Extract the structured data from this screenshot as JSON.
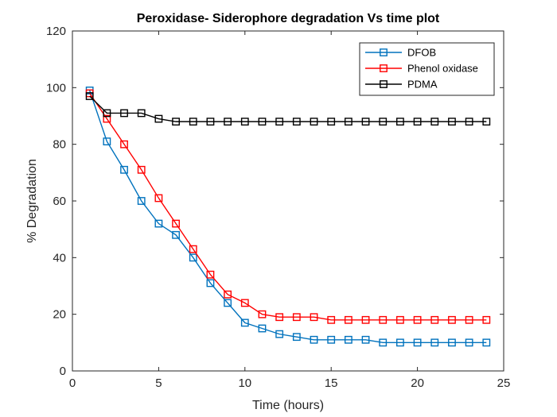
{
  "chart_data": {
    "type": "line",
    "title": "Peroxidase- Siderophore degradation Vs time plot",
    "xlabel": "Time (hours)",
    "ylabel": "% Degradation",
    "xlim": [
      0,
      25
    ],
    "ylim": [
      0,
      120
    ],
    "xticks": [
      0,
      5,
      10,
      15,
      20,
      25
    ],
    "yticks": [
      0,
      20,
      40,
      60,
      80,
      100,
      120
    ],
    "grid": false,
    "legend_position": "top-right",
    "marker": "square",
    "x": [
      1,
      2,
      3,
      4,
      5,
      6,
      7,
      8,
      9,
      10,
      11,
      12,
      13,
      14,
      15,
      16,
      17,
      18,
      19,
      20,
      21,
      22,
      23,
      24
    ],
    "series": [
      {
        "name": "DFOB",
        "color": "#0072BD",
        "values": [
          99,
          81,
          71,
          60,
          52,
          48,
          40,
          31,
          24,
          17,
          15,
          13,
          12,
          11,
          11,
          11,
          11,
          10,
          10,
          10,
          10,
          10,
          10,
          10
        ]
      },
      {
        "name": "Phenol oxidase",
        "color": "#FF0000",
        "values": [
          98,
          89,
          80,
          71,
          61,
          52,
          43,
          34,
          27,
          24,
          20,
          19,
          19,
          19,
          18,
          18,
          18,
          18,
          18,
          18,
          18,
          18,
          18,
          18
        ]
      },
      {
        "name": "PDMA",
        "color": "#000000",
        "values": [
          97,
          91,
          91,
          91,
          89,
          88,
          88,
          88,
          88,
          88,
          88,
          88,
          88,
          88,
          88,
          88,
          88,
          88,
          88,
          88,
          88,
          88,
          88,
          88
        ]
      }
    ]
  }
}
